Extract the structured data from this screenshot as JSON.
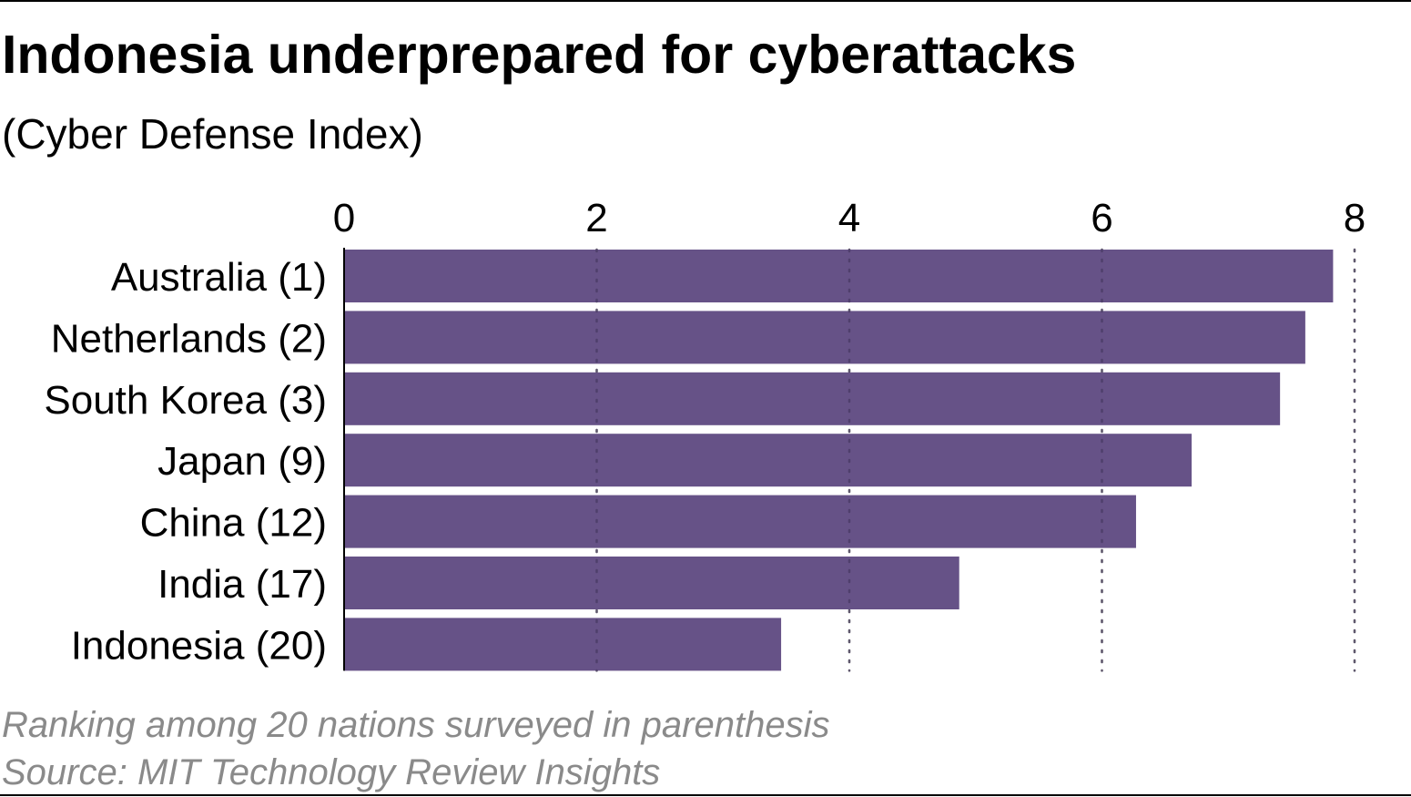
{
  "title": "Indonesia underprepared for cyberattacks",
  "subtitle": "(Cyber Defense Index)",
  "footer": {
    "note": "Ranking among 20 nations surveyed in parenthesis",
    "source": "Source: MIT Technology Review Insights"
  },
  "colors": {
    "bar": "#665287",
    "grid": "#8a8a8a",
    "axis": "#000000",
    "footer_text": "#8a8a8a"
  },
  "chart_data": {
    "type": "bar",
    "orientation": "horizontal",
    "title": "Indonesia underprepared for cyberattacks",
    "subtitle": "(Cyber Defense Index)",
    "categories": [
      "Australia (1)",
      "Netherlands (2)",
      "South Korea (3)",
      "Japan (9)",
      "China (12)",
      "India (17)",
      "Indonesia (20)"
    ],
    "values": [
      7.83,
      7.61,
      7.41,
      6.71,
      6.27,
      4.87,
      3.46
    ],
    "xlim": [
      0,
      8
    ],
    "ticks": [
      "0",
      "2",
      "4",
      "6",
      "8"
    ],
    "tick_values": [
      0,
      2,
      4,
      6,
      8
    ],
    "grid": true,
    "xlabel": "",
    "ylabel": ""
  }
}
